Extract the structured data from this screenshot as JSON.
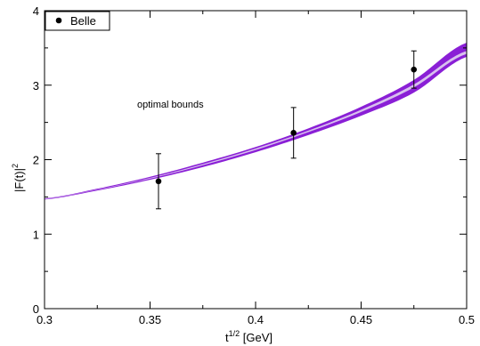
{
  "chart_data": {
    "type": "line",
    "title": "",
    "xlabel": "t^1/2 [GeV]",
    "xlabel_base": "t",
    "xlabel_sup": "1/2",
    "xlabel_unit": " [GeV]",
    "ylabel": "|F(t)|^2",
    "ylabel_base": "|F(t)|",
    "ylabel_sup": "2",
    "xlim": [
      0.3,
      0.5
    ],
    "ylim": [
      0,
      4
    ],
    "xticks": [
      0.3,
      0.35,
      0.4,
      0.45,
      0.5
    ],
    "xtick_labels": [
      "0.3",
      "0.35",
      "0.4",
      "0.45",
      "0.5"
    ],
    "yticks": [
      0,
      1,
      2,
      3,
      4
    ],
    "ytick_labels": [
      "0",
      "1",
      "2",
      "3",
      "4"
    ],
    "grid": false,
    "legend_position": "top-left",
    "annotation": "optimal bounds",
    "band_color": "#8a1fd6",
    "band_inner_color": "#d8c0ee",
    "series": [
      {
        "name": "Belle",
        "kind": "points",
        "x": [
          0.354,
          0.418,
          0.475
        ],
        "y": [
          1.71,
          2.36,
          3.21
        ],
        "yerr": [
          0.37,
          0.34,
          0.25
        ]
      },
      {
        "kind": "band",
        "x": [
          0.3,
          0.325,
          0.35,
          0.375,
          0.4,
          0.425,
          0.45,
          0.475,
          0.5
        ],
        "upper": [
          1.48,
          1.61,
          1.77,
          1.96,
          2.17,
          2.42,
          2.71,
          3.07,
          3.57
        ],
        "inner_upper": [
          1.475,
          1.6,
          1.755,
          1.94,
          2.15,
          2.39,
          2.67,
          3.01,
          3.46
        ],
        "inner_lower": [
          1.47,
          1.595,
          1.745,
          1.925,
          2.13,
          2.37,
          2.64,
          2.97,
          3.42
        ],
        "lower": [
          1.465,
          1.585,
          1.73,
          1.9,
          2.1,
          2.33,
          2.59,
          2.9,
          3.38
        ]
      }
    ]
  }
}
